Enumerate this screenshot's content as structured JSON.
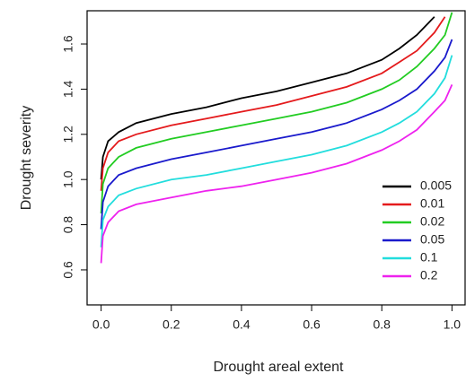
{
  "chart_data": {
    "type": "line",
    "x_label": "Drought areal extent",
    "y_label": "Drought severity",
    "x": [
      0,
      0.005,
      0.02,
      0.05,
      0.1,
      0.2,
      0.3,
      0.4,
      0.5,
      0.6,
      0.7,
      0.8,
      0.85,
      0.9,
      0.95,
      0.98,
      1.0
    ],
    "series": [
      {
        "name": "0.005",
        "color": "#000000",
        "values": [
          1.0,
          1.1,
          1.17,
          1.21,
          1.25,
          1.29,
          1.32,
          1.36,
          1.39,
          1.43,
          1.47,
          1.53,
          1.58,
          1.64,
          1.72,
          null,
          null
        ]
      },
      {
        "name": "0.01",
        "color": "#e41a1c",
        "values": [
          0.95,
          1.05,
          1.12,
          1.17,
          1.2,
          1.24,
          1.27,
          1.3,
          1.33,
          1.37,
          1.41,
          1.47,
          1.52,
          1.57,
          1.65,
          1.72,
          null
        ]
      },
      {
        "name": "0.02",
        "color": "#22cc22",
        "values": [
          0.85,
          0.98,
          1.05,
          1.1,
          1.14,
          1.18,
          1.21,
          1.24,
          1.27,
          1.3,
          1.34,
          1.4,
          1.44,
          1.5,
          1.58,
          1.64,
          1.74
        ]
      },
      {
        "name": "0.05",
        "color": "#1a1acc",
        "values": [
          0.78,
          0.9,
          0.97,
          1.02,
          1.05,
          1.09,
          1.12,
          1.15,
          1.18,
          1.21,
          1.25,
          1.31,
          1.35,
          1.4,
          1.48,
          1.54,
          1.62
        ]
      },
      {
        "name": "0.1",
        "color": "#22dddd",
        "values": [
          0.7,
          0.82,
          0.88,
          0.93,
          0.96,
          1.0,
          1.02,
          1.05,
          1.08,
          1.11,
          1.15,
          1.21,
          1.25,
          1.3,
          1.38,
          1.45,
          1.55
        ]
      },
      {
        "name": "0.2",
        "color": "#ee22ee",
        "values": [
          0.63,
          0.75,
          0.81,
          0.86,
          0.89,
          0.92,
          0.95,
          0.97,
          1.0,
          1.03,
          1.07,
          1.13,
          1.17,
          1.22,
          1.3,
          1.35,
          1.42
        ]
      }
    ],
    "xlim": [
      -0.04,
      1.04
    ],
    "ylim": [
      0.445,
      1.747
    ],
    "xticks": [
      {
        "value": 0,
        "label": "0.0"
      },
      0.2,
      0.4,
      0.6,
      0.8,
      {
        "value": 1,
        "label": "1.0"
      }
    ],
    "yticks": [
      0.6,
      0.8,
      {
        "value": 1,
        "label": "1.0"
      },
      1.2,
      1.4,
      1.6
    ],
    "legend": "bottom-right"
  }
}
